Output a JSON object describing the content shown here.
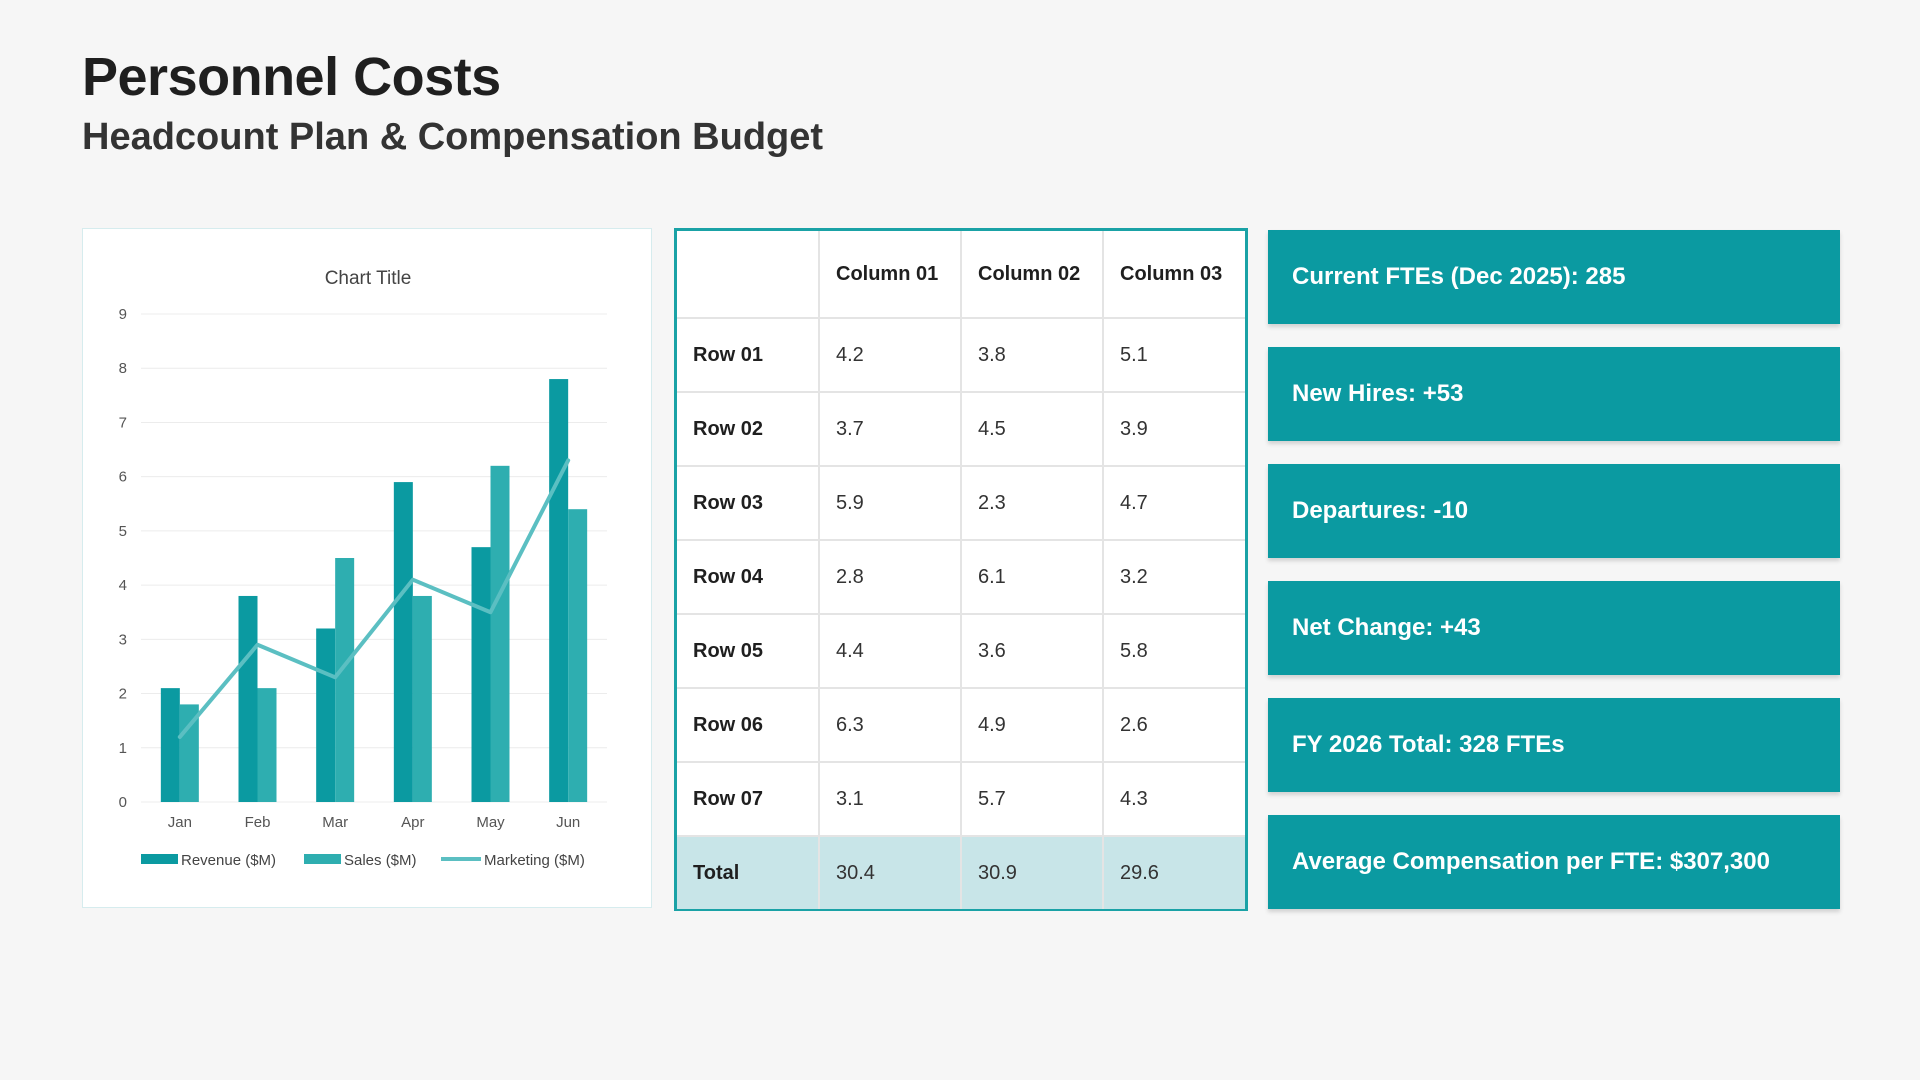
{
  "header": {
    "title": "Personnel Costs",
    "subtitle": "Headcount Plan & Compensation Budget"
  },
  "colors": {
    "revenue": "#0b9aa1",
    "sales": "#2eaeb0",
    "marketing": "#5bbfc2",
    "kpi_bg": "#0b9aa1",
    "table_border": "#1aa2a6",
    "total_row_bg": "#c8e5e8"
  },
  "chart_data": {
    "type": "bar",
    "title": "Chart Title",
    "categories": [
      "Jan",
      "Feb",
      "Mar",
      "Apr",
      "May",
      "Jun"
    ],
    "ylim": [
      0,
      9
    ],
    "yticks": [
      0,
      1,
      2,
      3,
      4,
      5,
      6,
      7,
      8,
      9
    ],
    "grid": true,
    "legend_position": "bottom",
    "series": [
      {
        "name": "Revenue ($M)",
        "type": "bar",
        "values": [
          2.1,
          3.8,
          3.2,
          5.9,
          4.7,
          7.8
        ]
      },
      {
        "name": "Sales ($M)",
        "type": "bar",
        "values": [
          1.8,
          2.1,
          4.5,
          3.8,
          6.2,
          5.4
        ]
      },
      {
        "name": "Marketing ($M)",
        "type": "line",
        "values": [
          1.2,
          2.9,
          2.3,
          4.1,
          3.5,
          6.3
        ]
      }
    ]
  },
  "table": {
    "corner": "",
    "columns": [
      "Column 01",
      "Column 02",
      "Column 03"
    ],
    "rows": [
      {
        "label": "Row 01",
        "values": [
          "4.2",
          "3.8",
          "5.1"
        ]
      },
      {
        "label": "Row 02",
        "values": [
          "3.7",
          "4.5",
          "3.9"
        ]
      },
      {
        "label": "Row 03",
        "values": [
          "5.9",
          "2.3",
          "4.7"
        ]
      },
      {
        "label": "Row 04",
        "values": [
          "2.8",
          "6.1",
          "3.2"
        ]
      },
      {
        "label": "Row 05",
        "values": [
          "4.4",
          "3.6",
          "5.8"
        ]
      },
      {
        "label": "Row 06",
        "values": [
          "6.3",
          "4.9",
          "2.6"
        ]
      },
      {
        "label": "Row 07",
        "values": [
          "3.1",
          "5.7",
          "4.3"
        ]
      }
    ],
    "total": {
      "label": "Total",
      "values": [
        "30.4",
        "30.9",
        "29.6"
      ]
    }
  },
  "kpis": [
    "Current FTEs (Dec 2025): 285",
    "New Hires: +53",
    "Departures: -10",
    "Net Change: +43",
    "FY 2026 Total: 328 FTEs",
    "Average Compensation per FTE: $307,300"
  ]
}
